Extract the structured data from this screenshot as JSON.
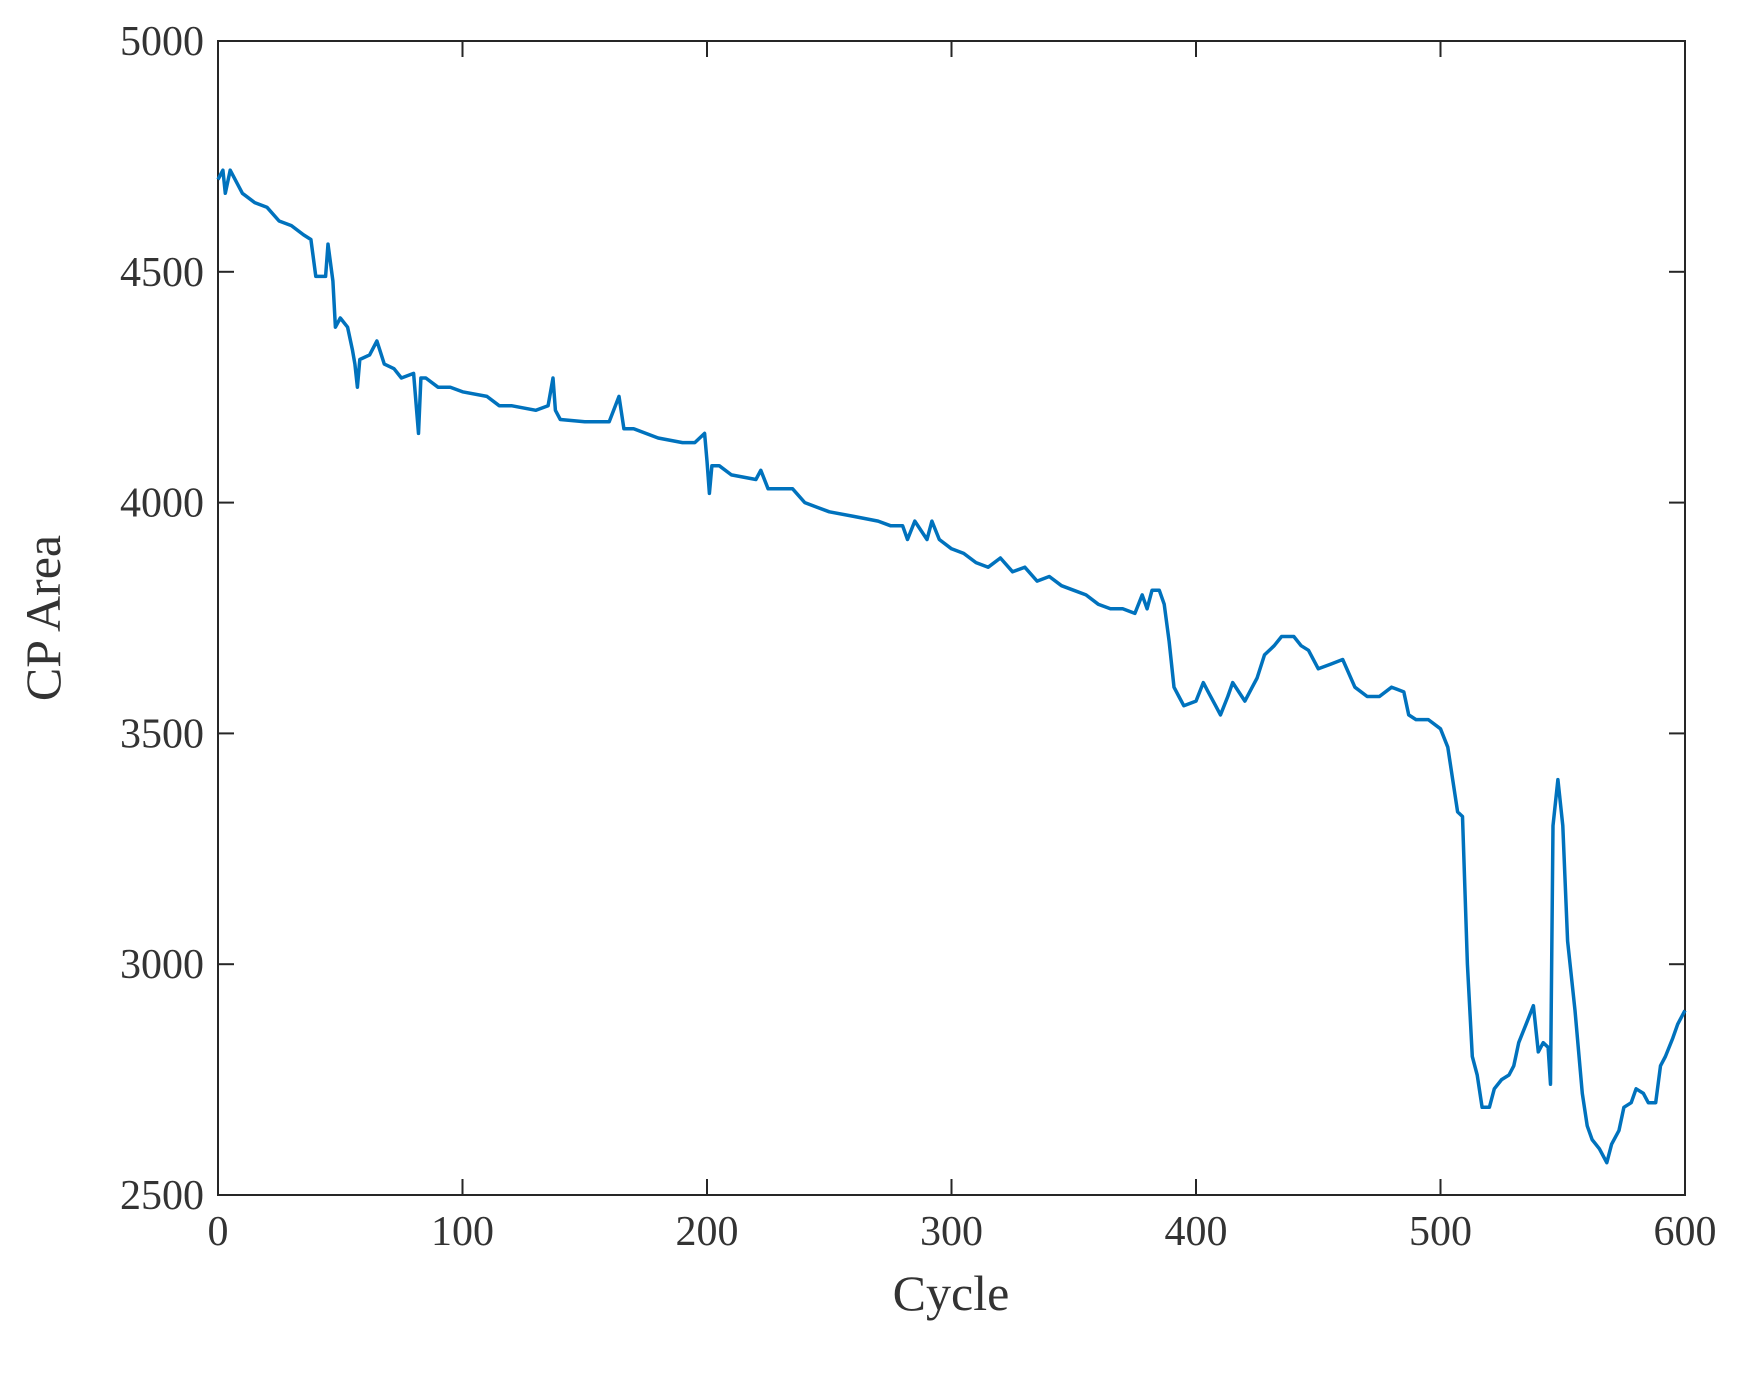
{
  "chart_data": {
    "type": "line",
    "xlabel": "Cycle",
    "ylabel": "CP Area",
    "x": [
      0,
      2,
      3,
      5,
      10,
      15,
      20,
      25,
      30,
      35,
      38,
      40,
      44,
      45,
      47,
      48,
      50,
      53,
      55,
      56,
      57,
      58,
      62,
      65,
      68,
      72,
      75,
      80,
      82,
      83,
      85,
      90,
      95,
      100,
      110,
      115,
      120,
      130,
      135,
      137,
      138,
      140,
      150,
      160,
      164,
      166,
      170,
      180,
      190,
      195,
      199,
      200,
      201,
      202,
      205,
      210,
      220,
      222,
      225,
      230,
      235,
      240,
      245,
      250,
      260,
      270,
      275,
      280,
      282,
      285,
      290,
      292,
      295,
      300,
      305,
      310,
      315,
      320,
      325,
      330,
      335,
      340,
      345,
      350,
      355,
      360,
      365,
      370,
      375,
      378,
      380,
      382,
      385,
      387,
      389,
      391,
      393,
      395,
      400,
      403,
      405,
      408,
      410,
      413,
      415,
      420,
      423,
      425,
      428,
      432,
      435,
      440,
      443,
      446,
      450,
      455,
      460,
      465,
      470,
      475,
      480,
      485,
      487,
      490,
      495,
      500,
      503,
      505,
      507,
      509,
      511,
      513,
      515,
      517,
      520,
      522,
      525,
      528,
      530,
      532,
      535,
      538,
      540,
      542,
      544,
      545,
      546,
      548,
      550,
      552,
      555,
      558,
      560,
      562,
      565,
      568,
      570,
      573,
      575,
      578,
      580,
      583,
      585,
      588,
      590,
      592,
      595,
      597,
      600
    ],
    "series": [
      {
        "name": "CP Area",
        "color": "#0072bd",
        "values": [
          4700,
          4720,
          4670,
          4720,
          4670,
          4650,
          4640,
          4610,
          4600,
          4580,
          4570,
          4490,
          4490,
          4560,
          4480,
          4380,
          4400,
          4380,
          4330,
          4300,
          4250,
          4310,
          4320,
          4350,
          4300,
          4290,
          4270,
          4280,
          4150,
          4270,
          4270,
          4250,
          4250,
          4240,
          4230,
          4210,
          4210,
          4200,
          4210,
          4270,
          4200,
          4180,
          4175,
          4175,
          4230,
          4160,
          4160,
          4140,
          4130,
          4130,
          4150,
          4090,
          4020,
          4080,
          4080,
          4060,
          4050,
          4070,
          4030,
          4030,
          4030,
          4000,
          3990,
          3980,
          3970,
          3960,
          3950,
          3950,
          3920,
          3960,
          3920,
          3960,
          3920,
          3900,
          3890,
          3870,
          3860,
          3880,
          3850,
          3860,
          3830,
          3840,
          3820,
          3810,
          3800,
          3780,
          3770,
          3770,
          3760,
          3800,
          3770,
          3810,
          3810,
          3780,
          3700,
          3600,
          3580,
          3560,
          3570,
          3610,
          3590,
          3560,
          3540,
          3580,
          3610,
          3570,
          3600,
          3620,
          3670,
          3690,
          3710,
          3710,
          3690,
          3680,
          3640,
          3650,
          3660,
          3600,
          3580,
          3580,
          3600,
          3590,
          3540,
          3530,
          3530,
          3510,
          3470,
          3400,
          3330,
          3320,
          3000,
          2800,
          2760,
          2690,
          2690,
          2730,
          2750,
          2760,
          2780,
          2830,
          2870,
          2910,
          2810,
          2830,
          2820,
          2740,
          3300,
          3400,
          3300,
          3050,
          2900,
          2720,
          2650,
          2620,
          2600,
          2570,
          2610,
          2640,
          2690,
          2700,
          2730,
          2720,
          2700,
          2700,
          2780,
          2800,
          2840,
          2870,
          2900
        ]
      }
    ],
    "xlim": [
      0,
      600
    ],
    "xticks": [
      0,
      100,
      200,
      300,
      400,
      500,
      600
    ],
    "ylim": [
      2500,
      5000
    ],
    "yticks": [
      2500,
      3000,
      3500,
      4000,
      4500,
      5000
    ]
  }
}
